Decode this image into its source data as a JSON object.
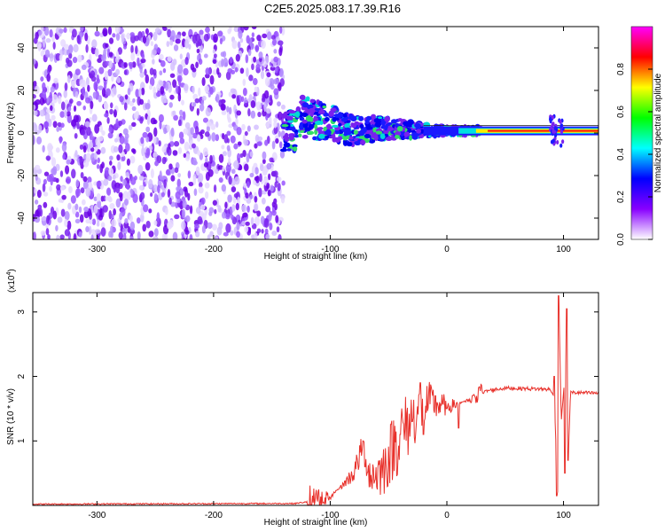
{
  "figure_title": "C2E5.2025.083.17.39.R16",
  "chart_data": [
    {
      "type": "heatmap",
      "title": "",
      "xlabel": "Height of straight line (km)",
      "ylabel": "Frequency (Hz)",
      "xlim": [
        -355,
        130
      ],
      "ylim": [
        -50,
        50
      ],
      "x_ticks": [
        -300,
        -200,
        -100,
        0,
        100
      ],
      "y_ticks": [
        -40,
        -20,
        0,
        20,
        40
      ],
      "grid": false,
      "colorbar": {
        "label": "Normalized spectral amplitude",
        "range": [
          0,
          1
        ],
        "ticks": [
          "0.0",
          "0.2",
          "0.4",
          "0.6",
          "0.8"
        ],
        "colors": [
          "#ffffff",
          "#8800ff",
          "#0000ff",
          "#00ffff",
          "#00ff00",
          "#ffff00",
          "#ff0000",
          "#ff00ff"
        ]
      },
      "regions": [
        {
          "x_range": [
            -355,
            -140
          ],
          "freq_range": [
            -50,
            50
          ],
          "amplitude": 0.1,
          "description_of_signal": "broadband noise"
        },
        {
          "x_range": [
            -140,
            30
          ],
          "center_freq": [
            [
              -130,
              8
            ],
            [
              -100,
              5
            ],
            [
              -80,
              1
            ],
            [
              -60,
              2
            ],
            [
              -40,
              2
            ],
            [
              -20,
              1
            ],
            [
              0,
              1
            ],
            [
              30,
              1
            ]
          ],
          "amplitude": 0.3
        },
        {
          "x_range": [
            30,
            130
          ],
          "center_freq": 1,
          "amplitude": 0.9
        },
        {
          "x_range": [
            88,
            100
          ],
          "center_freq": 1,
          "amplitude": 0.35
        }
      ]
    },
    {
      "type": "line",
      "title": "",
      "xlabel": "Height of straight line (km)",
      "ylabel": "SNR (10 * v/v)",
      "y_scale_note": "(x10",
      "y_scale_exp": "4",
      "xlim": [
        -355,
        130
      ],
      "ylim": [
        0,
        3.3
      ],
      "x_ticks": [
        -300,
        -200,
        -100,
        0,
        100
      ],
      "y_ticks": [
        1,
        2,
        3
      ],
      "grid": false,
      "series": [
        {
          "color": "#e8302a",
          "envelope_points": [
            [
              -355,
              0.02
            ],
            [
              -130,
              0.03
            ],
            [
              -110,
              0.08
            ],
            [
              -100,
              0.15
            ],
            [
              -90,
              0.3
            ],
            [
              -80,
              0.5
            ],
            [
              -72,
              0.9
            ],
            [
              -65,
              0.45
            ],
            [
              -55,
              0.55
            ],
            [
              -45,
              0.95
            ],
            [
              -35,
              1.2
            ],
            [
              -25,
              1.45
            ],
            [
              -15,
              1.6
            ],
            [
              -5,
              1.55
            ],
            [
              5,
              1.55
            ],
            [
              20,
              1.65
            ],
            [
              35,
              1.78
            ],
            [
              50,
              1.82
            ],
            [
              70,
              1.81
            ],
            [
              88,
              1.8
            ],
            [
              92,
              1.7
            ],
            [
              95,
              0.2
            ],
            [
              96,
              3.25
            ],
            [
              98,
              1.3
            ],
            [
              102,
              2.2
            ],
            [
              104,
              0.7
            ],
            [
              106,
              1.75
            ],
            [
              130,
              1.74
            ]
          ],
          "spikes": [
            [
              -72,
              1.0
            ],
            [
              -70,
              0.6
            ],
            [
              -40,
              1.1
            ],
            [
              -30,
              1.3
            ],
            [
              -23,
              1.9
            ],
            [
              -20,
              1.1
            ],
            [
              -10,
              1.7
            ],
            [
              0,
              1.5
            ],
            [
              10,
              1.2
            ],
            [
              92,
              2.0
            ],
            [
              94,
              0.15
            ],
            [
              96,
              3.25
            ],
            [
              101,
              0.5
            ],
            [
              103,
              3.05
            ],
            [
              104,
              0.7
            ]
          ]
        }
      ]
    }
  ]
}
